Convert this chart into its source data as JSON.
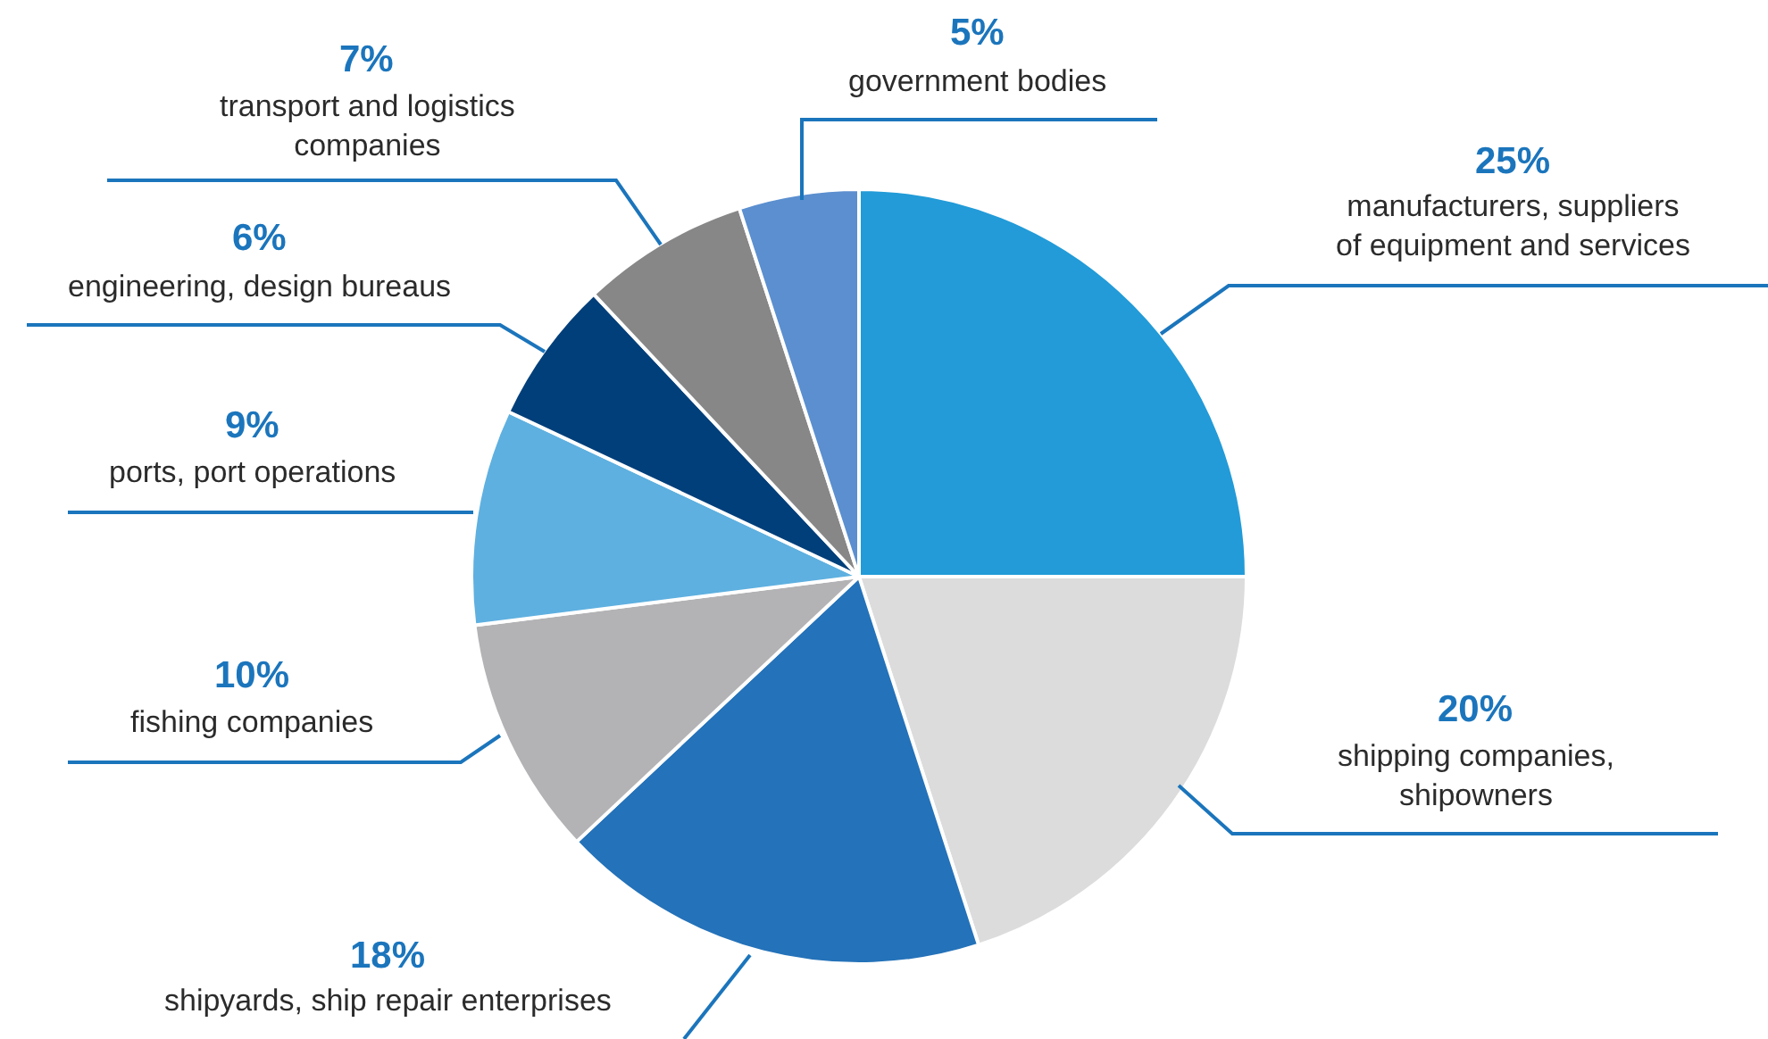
{
  "chart_data": {
    "type": "pie",
    "categories": [
      "manufacturers, suppliers\nof equipment and services",
      "shipping companies,\nshipowners",
      "shipyards, ship repair enterprises",
      "fishing companies",
      "ports, port operations",
      "engineering, design bureaus",
      "transport and logistics\ncompanies",
      "government bodies"
    ],
    "values": [
      25,
      20,
      18,
      10,
      9,
      6,
      7,
      5
    ],
    "value_labels": [
      "25%",
      "20%",
      "18%",
      "10%",
      "9%",
      "6%",
      "7%",
      "5%"
    ],
    "colors": [
      "#229bd8",
      "#dcdcdc",
      "#2472b9",
      "#b3b3b5",
      "#5eb0e0",
      "#003f7a",
      "#878787",
      "#5b8fcf"
    ],
    "legend": false
  }
}
